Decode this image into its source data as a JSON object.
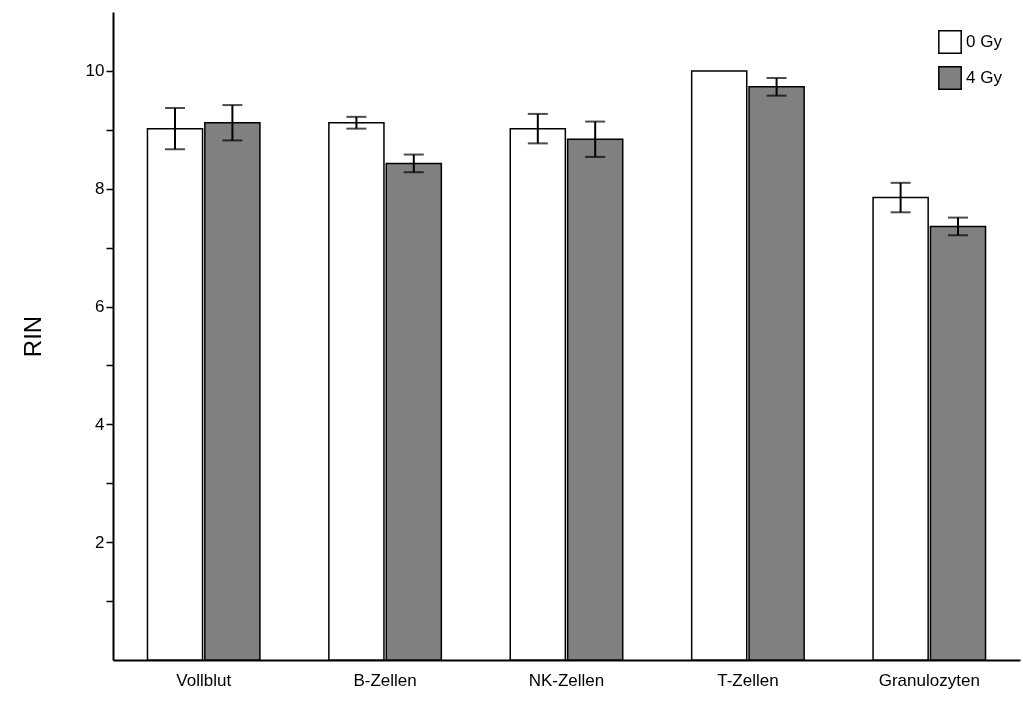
{
  "chart_data": {
    "type": "bar",
    "ylabel": "RIN",
    "categories": [
      "Vollblut",
      "B-Zellen",
      "NK-Zellen",
      "T-Zellen",
      "Granulozyten"
    ],
    "series": [
      {
        "name": "0 Gy",
        "color": "#ffffff",
        "values": [
          9.02,
          9.12,
          9.02,
          10.0,
          7.85
        ],
        "errors": [
          0.35,
          0.1,
          0.25,
          null,
          0.25
        ]
      },
      {
        "name": "4 Gy",
        "color": "#808080",
        "values": [
          9.12,
          8.43,
          8.84,
          9.73,
          7.36
        ],
        "errors": [
          0.3,
          0.15,
          0.3,
          0.15,
          0.15
        ]
      }
    ],
    "ylim": [
      0,
      11
    ],
    "yticks": [
      {
        "value": 1,
        "label": null
      },
      2,
      {
        "value": 3,
        "label": null
      },
      4,
      {
        "value": 5,
        "label": null
      },
      6,
      {
        "value": 7,
        "label": null
      },
      8,
      {
        "value": 9,
        "label": null
      },
      10
    ],
    "grid": false,
    "legend": "top right"
  }
}
